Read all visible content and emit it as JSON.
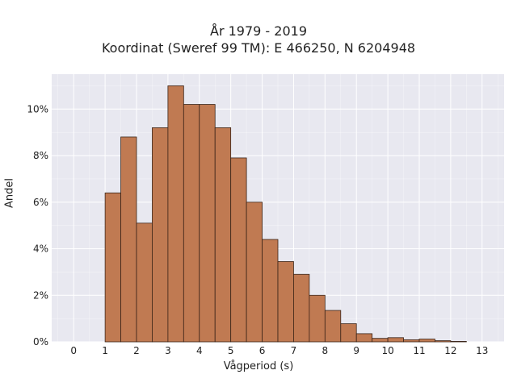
{
  "chart_data": {
    "type": "bar",
    "title": "År 1979 - 2019",
    "subtitle": "Koordinat (Sweref 99 TM): E 466250, N 6204948",
    "xlabel": "Vågperiod (s)",
    "ylabel": "Andel",
    "xlim": [
      -0.7,
      13.7
    ],
    "ylim": [
      0,
      11.5
    ],
    "x_ticks": [
      0,
      1,
      2,
      3,
      4,
      5,
      6,
      7,
      8,
      9,
      10,
      11,
      12,
      13
    ],
    "y_ticks": [
      0,
      2,
      4,
      6,
      8,
      10
    ],
    "y_tick_labels": [
      "0%",
      "2%",
      "4%",
      "6%",
      "8%",
      "10%"
    ],
    "bin_width": 0.5,
    "bin_edges_start": 1.0,
    "values": [
      6.4,
      8.8,
      5.1,
      9.2,
      11.0,
      10.2,
      10.2,
      9.2,
      7.9,
      6.0,
      4.4,
      3.45,
      2.9,
      2.0,
      1.35,
      0.78,
      0.35,
      0.15,
      0.18,
      0.09,
      0.12,
      0.05,
      0.02
    ],
    "grid": true,
    "bar_color": "#C07A52",
    "bar_edge_color": "#3a2418",
    "background_color": "#E8E8F0"
  }
}
